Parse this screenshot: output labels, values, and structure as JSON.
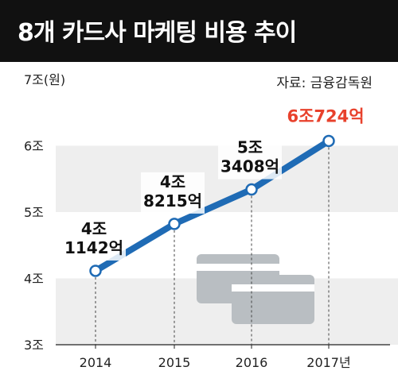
{
  "title": "8개 카드사 마케팅 비용 추이",
  "source": "자료: 금융감독원",
  "colors": {
    "title_bg": "#111111",
    "line": "#1f6bb5",
    "marker_fill": "#ffffff",
    "highlight_label": "#e8412c",
    "band": "#eeeeee",
    "card_icon": "#b9bec2"
  },
  "icons": [
    "card-icon",
    "card-icon"
  ],
  "chart_data": {
    "type": "line",
    "categories": [
      "2014",
      "2015",
      "2016",
      "2017년"
    ],
    "values": [
      4.1142,
      4.8215,
      5.3408,
      6.0724
    ],
    "unit": "조",
    "ylim": [
      3,
      7
    ],
    "yticks": [
      3,
      4,
      5,
      6,
      7
    ],
    "ytick_labels": [
      "3조",
      "4조",
      "5조",
      "6조",
      "7조(원)"
    ],
    "data_labels": [
      [
        "4조",
        "1142억"
      ],
      [
        "4조",
        "8215억"
      ],
      [
        "5조",
        "3408억"
      ],
      [
        "6조724억"
      ]
    ],
    "highlight_index": 3,
    "grid": "alternating horizontal bands",
    "legend": "none"
  }
}
